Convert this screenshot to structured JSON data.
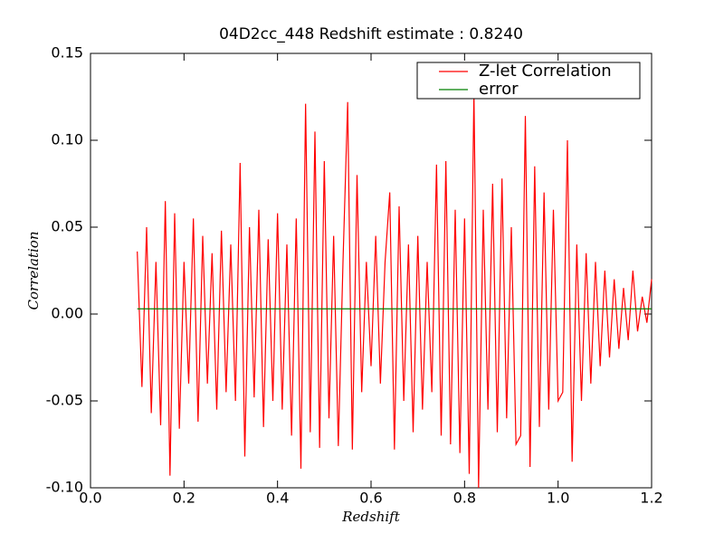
{
  "chart_data": {
    "type": "line",
    "title": "04D2cc_448 Redshift estimate : 0.8240",
    "x_label": "Redshift",
    "y_label": "Correlation",
    "xlim": [
      0,
      1.2
    ],
    "ylim": [
      -0.1,
      0.15
    ],
    "xticks": [
      {
        "value": 0,
        "label": "0.0"
      },
      0.2,
      0.4,
      0.6,
      0.8,
      {
        "value": 1,
        "label": "1.0"
      },
      1.2
    ],
    "yticks": [
      {
        "value": -0.1,
        "label": "-0.10"
      },
      -0.05,
      {
        "value": 0,
        "label": "0.00"
      },
      0.05,
      {
        "value": 0.1,
        "label": "0.10"
      },
      0.15
    ],
    "legend": "upper right",
    "series": [
      {
        "name": "Z-let Correlation",
        "color": "#ff0000",
        "x": [
          0.1,
          0.11,
          0.12,
          0.13,
          0.14,
          0.15,
          0.16,
          0.17,
          0.18,
          0.19,
          0.2,
          0.21,
          0.22,
          0.23,
          0.24,
          0.25,
          0.26,
          0.27,
          0.28,
          0.29,
          0.3,
          0.31,
          0.32,
          0.33,
          0.34,
          0.35,
          0.36,
          0.37,
          0.38,
          0.39,
          0.4,
          0.41,
          0.42,
          0.43,
          0.44,
          0.45,
          0.46,
          0.47,
          0.48,
          0.49,
          0.5,
          0.51,
          0.52,
          0.53,
          0.54,
          0.55,
          0.56,
          0.57,
          0.58,
          0.59,
          0.6,
          0.61,
          0.62,
          0.63,
          0.64,
          0.65,
          0.66,
          0.67,
          0.68,
          0.69,
          0.7,
          0.71,
          0.72,
          0.73,
          0.74,
          0.75,
          0.76,
          0.77,
          0.78,
          0.79,
          0.8,
          0.81,
          0.82,
          0.83,
          0.84,
          0.85,
          0.86,
          0.87,
          0.88,
          0.89,
          0.9,
          0.91,
          0.92,
          0.93,
          0.94,
          0.95,
          0.96,
          0.97,
          0.98,
          0.99,
          1.0,
          1.01,
          1.02,
          1.03,
          1.04,
          1.05,
          1.06,
          1.07,
          1.08,
          1.09,
          1.1,
          1.11,
          1.12,
          1.13,
          1.14,
          1.15,
          1.16,
          1.17,
          1.18,
          1.19,
          1.2
        ],
        "values": [
          0.036,
          -0.042,
          0.05,
          -0.057,
          0.03,
          -0.064,
          0.065,
          -0.093,
          0.058,
          -0.066,
          0.03,
          -0.04,
          0.055,
          -0.062,
          0.045,
          -0.04,
          0.035,
          -0.055,
          0.048,
          -0.045,
          0.04,
          -0.05,
          0.087,
          -0.082,
          0.05,
          -0.048,
          0.06,
          -0.065,
          0.043,
          -0.05,
          0.058,
          -0.055,
          0.04,
          -0.07,
          0.055,
          -0.089,
          0.121,
          -0.068,
          0.105,
          -0.077,
          0.088,
          -0.06,
          0.045,
          -0.076,
          0.03,
          0.122,
          -0.078,
          0.08,
          -0.045,
          0.03,
          -0.03,
          0.045,
          -0.04,
          0.03,
          0.07,
          -0.078,
          0.062,
          -0.05,
          0.04,
          -0.068,
          0.045,
          -0.055,
          0.03,
          -0.045,
          0.086,
          -0.07,
          0.088,
          -0.075,
          0.06,
          -0.08,
          0.055,
          -0.092,
          0.128,
          -0.1,
          0.06,
          -0.055,
          0.075,
          -0.068,
          0.078,
          -0.06,
          0.05,
          -0.075,
          -0.07,
          0.114,
          -0.088,
          0.085,
          -0.065,
          0.07,
          -0.055,
          0.06,
          -0.05,
          -0.045,
          0.1,
          -0.085,
          0.04,
          -0.05,
          0.035,
          -0.04,
          0.03,
          -0.03,
          0.025,
          -0.025,
          0.02,
          -0.02,
          0.015,
          -0.015,
          0.025,
          -0.01,
          0.01,
          -0.005,
          0.02
        ]
      },
      {
        "name": "error",
        "color": "#008000",
        "x": [
          0.1,
          1.2
        ],
        "values": [
          0.003,
          0.003
        ]
      }
    ],
    "marker": {
      "x": 0.824,
      "y": 0.128
    }
  }
}
